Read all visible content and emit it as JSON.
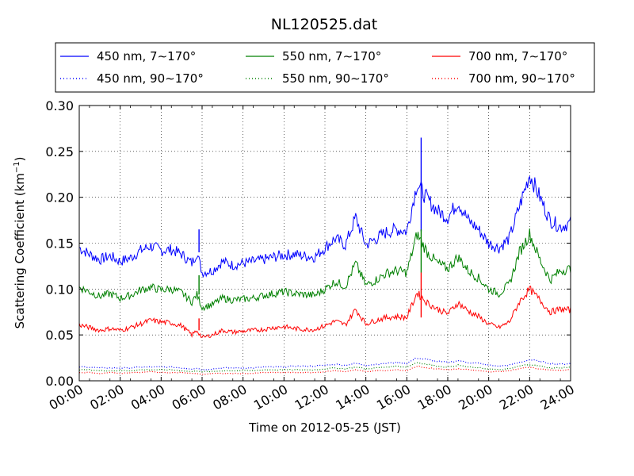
{
  "chart_data": {
    "type": "line",
    "title": "NL120525.dat",
    "xlabel": "Time on 2012-05-25 (JST)",
    "ylabel": "Scattering Coefficient (km",
    "ylabel_unit_sup": "−1",
    "ylabel_close": ")",
    "xlim": [
      "00:00",
      "24:00"
    ],
    "ylim": [
      0.0,
      0.3
    ],
    "x_ticks": [
      "00:00",
      "02:00",
      "04:00",
      "06:00",
      "08:00",
      "10:00",
      "12:00",
      "14:00",
      "16:00",
      "18:00",
      "20:00",
      "22:00",
      "24:00"
    ],
    "y_ticks": [
      "0.00",
      "0.05",
      "0.10",
      "0.15",
      "0.20",
      "0.25",
      "0.30"
    ],
    "grid": true,
    "legend_position": "top",
    "x_hours": [
      0,
      0.5,
      1,
      1.5,
      2,
      2.5,
      3,
      3.5,
      4,
      4.5,
      5,
      5.5,
      5.75,
      6,
      6.5,
      7,
      7.5,
      8,
      8.5,
      9,
      9.5,
      10,
      10.5,
      11,
      11.5,
      12,
      12.5,
      13,
      13.5,
      14,
      14.5,
      15,
      15.5,
      16,
      16.5,
      17,
      17.5,
      18,
      18.5,
      19,
      19.5,
      20,
      20.5,
      21,
      21.5,
      22,
      22.5,
      23,
      23.5,
      24
    ],
    "series": [
      {
        "name": "450 nm, 7∼170°",
        "color": "#0000ff",
        "style": "solid",
        "values": [
          0.145,
          0.138,
          0.132,
          0.136,
          0.13,
          0.134,
          0.142,
          0.147,
          0.142,
          0.143,
          0.138,
          0.128,
          0.14,
          0.118,
          0.12,
          0.13,
          0.126,
          0.128,
          0.13,
          0.132,
          0.135,
          0.137,
          0.138,
          0.136,
          0.135,
          0.145,
          0.155,
          0.148,
          0.178,
          0.148,
          0.155,
          0.162,
          0.165,
          0.163,
          0.215,
          0.198,
          0.185,
          0.178,
          0.195,
          0.175,
          0.165,
          0.15,
          0.145,
          0.155,
          0.19,
          0.225,
          0.2,
          0.175,
          0.168,
          0.172
        ]
      },
      {
        "name": "450 nm, 90∼170°",
        "color": "#0000ff",
        "style": "dotted",
        "values": [
          0.015,
          0.015,
          0.014,
          0.014,
          0.014,
          0.014,
          0.015,
          0.015,
          0.015,
          0.015,
          0.014,
          0.013,
          0.014,
          0.012,
          0.013,
          0.014,
          0.014,
          0.014,
          0.014,
          0.015,
          0.015,
          0.015,
          0.016,
          0.016,
          0.016,
          0.017,
          0.018,
          0.017,
          0.019,
          0.017,
          0.018,
          0.019,
          0.02,
          0.019,
          0.025,
          0.023,
          0.021,
          0.02,
          0.022,
          0.02,
          0.019,
          0.017,
          0.016,
          0.017,
          0.02,
          0.023,
          0.021,
          0.019,
          0.018,
          0.019
        ]
      },
      {
        "name": "550 nm, 7∼170°",
        "color": "#008000",
        "style": "solid",
        "values": [
          0.102,
          0.097,
          0.092,
          0.095,
          0.09,
          0.093,
          0.099,
          0.102,
          0.099,
          0.1,
          0.096,
          0.086,
          0.094,
          0.08,
          0.083,
          0.09,
          0.088,
          0.089,
          0.09,
          0.093,
          0.095,
          0.097,
          0.095,
          0.094,
          0.093,
          0.1,
          0.108,
          0.103,
          0.128,
          0.104,
          0.11,
          0.117,
          0.12,
          0.118,
          0.16,
          0.14,
          0.128,
          0.122,
          0.135,
          0.12,
          0.112,
          0.1,
          0.095,
          0.105,
          0.14,
          0.16,
          0.132,
          0.11,
          0.12,
          0.122
        ]
      },
      {
        "name": "550 nm, 90∼170°",
        "color": "#008000",
        "style": "dotted",
        "values": [
          0.012,
          0.012,
          0.011,
          0.011,
          0.011,
          0.011,
          0.012,
          0.012,
          0.012,
          0.012,
          0.011,
          0.01,
          0.011,
          0.01,
          0.01,
          0.011,
          0.011,
          0.011,
          0.011,
          0.012,
          0.012,
          0.012,
          0.012,
          0.012,
          0.012,
          0.013,
          0.014,
          0.013,
          0.015,
          0.013,
          0.014,
          0.015,
          0.016,
          0.015,
          0.02,
          0.018,
          0.016,
          0.015,
          0.017,
          0.015,
          0.014,
          0.013,
          0.012,
          0.013,
          0.016,
          0.018,
          0.016,
          0.014,
          0.014,
          0.015
        ]
      },
      {
        "name": "700 nm, 7∼170°",
        "color": "#ff0000",
        "style": "solid",
        "values": [
          0.061,
          0.058,
          0.055,
          0.057,
          0.055,
          0.058,
          0.062,
          0.066,
          0.064,
          0.063,
          0.06,
          0.05,
          0.055,
          0.047,
          0.05,
          0.055,
          0.053,
          0.054,
          0.055,
          0.056,
          0.058,
          0.059,
          0.057,
          0.056,
          0.056,
          0.06,
          0.065,
          0.061,
          0.078,
          0.062,
          0.066,
          0.069,
          0.07,
          0.069,
          0.096,
          0.085,
          0.078,
          0.073,
          0.085,
          0.076,
          0.07,
          0.062,
          0.058,
          0.064,
          0.086,
          0.1,
          0.088,
          0.075,
          0.078,
          0.077
        ]
      },
      {
        "name": "700 nm, 90∼170°",
        "color": "#ff0000",
        "style": "dotted",
        "values": [
          0.009,
          0.009,
          0.008,
          0.009,
          0.008,
          0.009,
          0.009,
          0.01,
          0.009,
          0.009,
          0.009,
          0.008,
          0.008,
          0.007,
          0.008,
          0.008,
          0.008,
          0.008,
          0.008,
          0.009,
          0.009,
          0.009,
          0.009,
          0.009,
          0.009,
          0.01,
          0.011,
          0.01,
          0.012,
          0.01,
          0.011,
          0.011,
          0.012,
          0.011,
          0.016,
          0.014,
          0.013,
          0.012,
          0.013,
          0.012,
          0.011,
          0.01,
          0.01,
          0.011,
          0.013,
          0.015,
          0.013,
          0.012,
          0.011,
          0.012
        ]
      }
    ],
    "spikes": [
      {
        "x": 5.85,
        "series": 0,
        "value": 0.165
      },
      {
        "x": 5.85,
        "series": 2,
        "value": 0.115
      },
      {
        "x": 5.85,
        "series": 4,
        "value": 0.068
      },
      {
        "x": 16.7,
        "series": 0,
        "value": 0.265
      },
      {
        "x": 16.7,
        "series": 2,
        "value": 0.165
      },
      {
        "x": 16.7,
        "series": 4,
        "value": 0.118
      }
    ]
  }
}
